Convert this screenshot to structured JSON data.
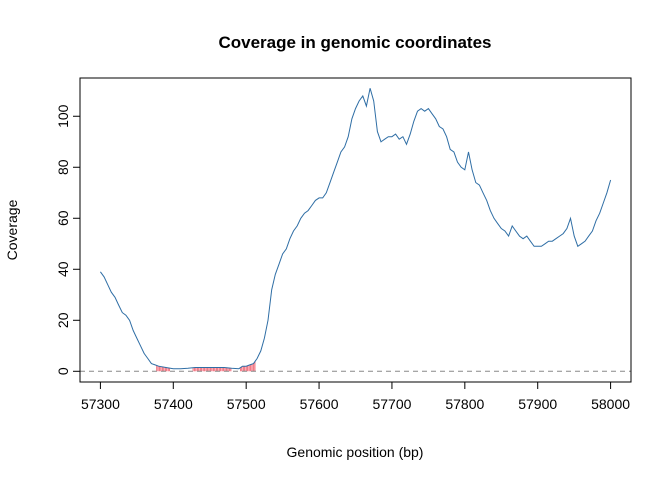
{
  "chart_data": {
    "type": "line",
    "title": "Coverage in genomic coordinates",
    "xlabel": "Genomic position (bp)",
    "ylabel": "Coverage",
    "xlim": [
      57272,
      58028
    ],
    "ylim": [
      -4.2,
      115
    ],
    "x_ticks": [
      57300,
      57400,
      57500,
      57600,
      57700,
      57800,
      57900,
      58000
    ],
    "y_ticks": [
      0,
      20,
      40,
      60,
      80,
      100
    ],
    "line_color": "#2f6ea5",
    "low_coverage_color": "#ff8c99",
    "reference_line": {
      "y": 0,
      "style": "dashed",
      "color": "#888888"
    },
    "grid": false,
    "legend": "none",
    "series": [
      {
        "points": [
          [
            57300,
            39
          ],
          [
            57305,
            37
          ],
          [
            57310,
            34
          ],
          [
            57315,
            31
          ],
          [
            57320,
            29
          ],
          [
            57325,
            26
          ],
          [
            57330,
            23
          ],
          [
            57335,
            22
          ],
          [
            57340,
            20
          ],
          [
            57345,
            16
          ],
          [
            57350,
            13
          ],
          [
            57355,
            10
          ],
          [
            57360,
            7
          ],
          [
            57365,
            5
          ],
          [
            57370,
            3
          ],
          [
            57375,
            2.5
          ],
          [
            57380,
            2
          ],
          [
            57390,
            1.5
          ],
          [
            57400,
            1
          ],
          [
            57410,
            1
          ],
          [
            57420,
            1.2
          ],
          [
            57430,
            1.5
          ],
          [
            57440,
            1.5
          ],
          [
            57450,
            1.5
          ],
          [
            57460,
            1.5
          ],
          [
            57470,
            1.5
          ],
          [
            57480,
            1.2
          ],
          [
            57490,
            1
          ],
          [
            57495,
            2
          ],
          [
            57500,
            2
          ],
          [
            57505,
            2.5
          ],
          [
            57510,
            3
          ],
          [
            57515,
            5
          ],
          [
            57520,
            8
          ],
          [
            57525,
            13
          ],
          [
            57530,
            20
          ],
          [
            57535,
            32
          ],
          [
            57540,
            38
          ],
          [
            57545,
            42
          ],
          [
            57550,
            46
          ],
          [
            57555,
            48
          ],
          [
            57560,
            52
          ],
          [
            57565,
            55
          ],
          [
            57570,
            57
          ],
          [
            57575,
            60
          ],
          [
            57580,
            62
          ],
          [
            57585,
            63
          ],
          [
            57590,
            65
          ],
          [
            57595,
            67
          ],
          [
            57600,
            68
          ],
          [
            57605,
            68
          ],
          [
            57610,
            70
          ],
          [
            57615,
            74
          ],
          [
            57620,
            78
          ],
          [
            57625,
            82
          ],
          [
            57630,
            86
          ],
          [
            57635,
            88
          ],
          [
            57640,
            92
          ],
          [
            57645,
            99
          ],
          [
            57650,
            103
          ],
          [
            57655,
            106
          ],
          [
            57660,
            108
          ],
          [
            57665,
            104
          ],
          [
            57670,
            111
          ],
          [
            57675,
            106
          ],
          [
            57680,
            94
          ],
          [
            57685,
            90
          ],
          [
            57690,
            91
          ],
          [
            57695,
            92
          ],
          [
            57700,
            92
          ],
          [
            57705,
            93
          ],
          [
            57710,
            91
          ],
          [
            57715,
            92
          ],
          [
            57720,
            89
          ],
          [
            57725,
            93
          ],
          [
            57730,
            98
          ],
          [
            57735,
            102
          ],
          [
            57740,
            103
          ],
          [
            57745,
            102
          ],
          [
            57750,
            103
          ],
          [
            57755,
            101
          ],
          [
            57760,
            99
          ],
          [
            57765,
            96
          ],
          [
            57770,
            95
          ],
          [
            57775,
            92
          ],
          [
            57780,
            87
          ],
          [
            57785,
            86
          ],
          [
            57790,
            82
          ],
          [
            57795,
            80
          ],
          [
            57800,
            79
          ],
          [
            57805,
            86
          ],
          [
            57810,
            79
          ],
          [
            57815,
            74
          ],
          [
            57820,
            73
          ],
          [
            57825,
            70
          ],
          [
            57830,
            67
          ],
          [
            57835,
            63
          ],
          [
            57840,
            60
          ],
          [
            57845,
            58
          ],
          [
            57850,
            56
          ],
          [
            57855,
            55
          ],
          [
            57860,
            53
          ],
          [
            57865,
            57
          ],
          [
            57870,
            55
          ],
          [
            57875,
            53
          ],
          [
            57880,
            52
          ],
          [
            57885,
            53
          ],
          [
            57890,
            51
          ],
          [
            57895,
            49
          ],
          [
            57900,
            49
          ],
          [
            57905,
            49
          ],
          [
            57910,
            50
          ],
          [
            57915,
            51
          ],
          [
            57920,
            51
          ],
          [
            57925,
            52
          ],
          [
            57930,
            53
          ],
          [
            57935,
            54
          ],
          [
            57940,
            56
          ],
          [
            57945,
            60
          ],
          [
            57950,
            53
          ],
          [
            57955,
            49
          ],
          [
            57960,
            50
          ],
          [
            57965,
            51
          ],
          [
            57970,
            53
          ],
          [
            57975,
            55
          ],
          [
            57980,
            59
          ],
          [
            57985,
            62
          ],
          [
            57990,
            66
          ],
          [
            57995,
            70
          ],
          [
            58000,
            75
          ]
        ]
      }
    ],
    "low_coverage_regions": [
      {
        "x_start": 57377,
        "x_end": 57395
      },
      {
        "x_start": 57427,
        "x_end": 57480
      },
      {
        "x_start": 57492,
        "x_end": 57513
      }
    ]
  }
}
